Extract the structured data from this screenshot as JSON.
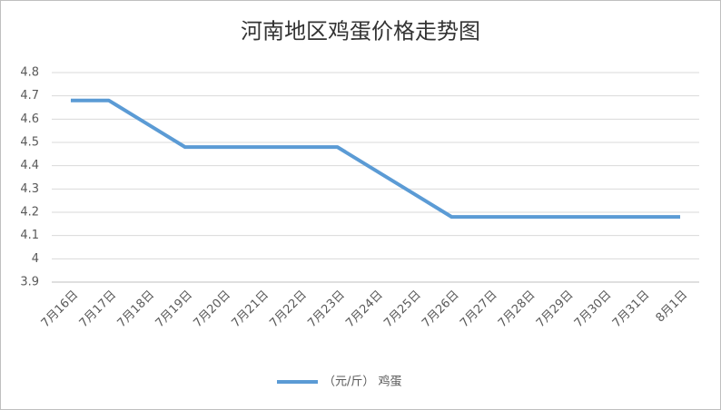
{
  "chart_data": {
    "type": "line",
    "title": "河南地区鸡蛋价格走势图",
    "categories": [
      "7月16日",
      "7月17日",
      "7月18日",
      "7月19日",
      "7月20日",
      "7月21日",
      "7月22日",
      "7月23日",
      "7月24日",
      "7月25日",
      "7月26日",
      "7月27日",
      "7月28日",
      "7月29日",
      "7月30日",
      "7月31日",
      "8月1日"
    ],
    "series": [
      {
        "name": "（元/斤） 鸡蛋",
        "color": "#5b9bd5",
        "values": [
          4.68,
          4.68,
          4.58,
          4.48,
          4.48,
          4.48,
          4.48,
          4.48,
          4.38,
          4.28,
          4.18,
          4.18,
          4.18,
          4.18,
          4.18,
          4.18,
          4.18
        ]
      }
    ],
    "ylim": [
      3.9,
      4.8
    ],
    "yticks": [
      3.9,
      4,
      4.1,
      4.2,
      4.3,
      4.4,
      4.5,
      4.6,
      4.7,
      4.8
    ],
    "grid": true,
    "legend": "bottom"
  }
}
